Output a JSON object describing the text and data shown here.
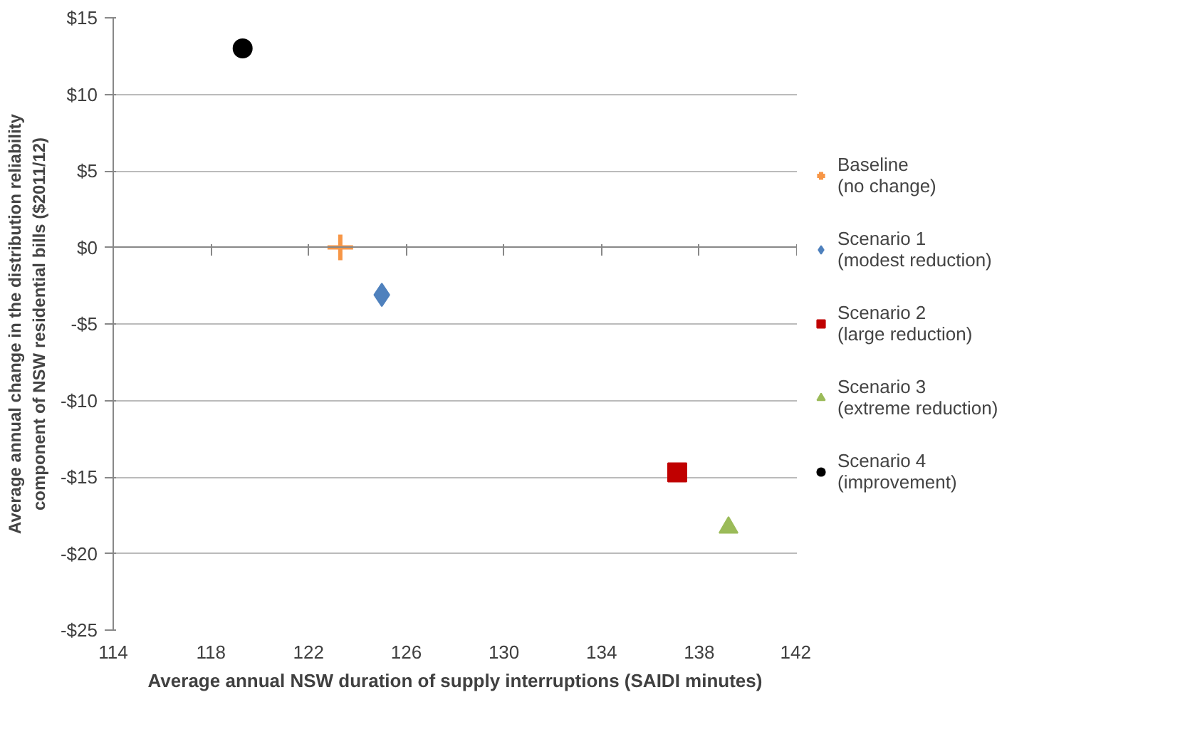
{
  "chart_data": {
    "type": "scatter",
    "xlabel": "Average annual NSW duration of supply interruptions (SAIDI minutes)",
    "ylabel": "Average annual change in the distribution reliability component of NSW residential bills ($2011/12)",
    "series": [
      {
        "name": "Baseline (no change)",
        "color": "#f79646",
        "marker": "cross",
        "x": [
          123.3
        ],
        "values": [
          0
        ]
      },
      {
        "name": "Scenario 1 (modest reduction)",
        "color": "#4f81bd",
        "marker": "diamond",
        "x": [
          125.0
        ],
        "values": [
          -3.1
        ]
      },
      {
        "name": "Scenario 2 (large reduction)",
        "color": "#c00000",
        "marker": "square",
        "x": [
          137.1
        ],
        "values": [
          -14.7
        ]
      },
      {
        "name": "Scenario 3 (extreme reduction)",
        "color": "#9bbb59",
        "marker": "triangle",
        "x": [
          139.2
        ],
        "values": [
          -18.3
        ]
      },
      {
        "name": "Scenario 4 (improvement)",
        "color": "#000000",
        "marker": "circle",
        "x": [
          119.3
        ],
        "values": [
          13.0
        ]
      }
    ],
    "xlim": [
      114,
      142
    ],
    "xticks": [
      114,
      118,
      122,
      126,
      130,
      134,
      138,
      142
    ],
    "ylim": [
      -25,
      15
    ],
    "yticks": [
      {
        "value": -25,
        "label": "-$25"
      },
      {
        "value": -20,
        "label": "-$20"
      },
      {
        "value": -15,
        "label": "-$15"
      },
      {
        "value": -10,
        "label": "-$10"
      },
      {
        "value": -5,
        "label": "-$5"
      },
      {
        "value": 0,
        "label": "$0"
      },
      {
        "value": 5,
        "label": "$5"
      },
      {
        "value": 10,
        "label": "$10"
      },
      {
        "value": 15,
        "label": "$15"
      }
    ],
    "grid": "y",
    "legend": "right"
  }
}
